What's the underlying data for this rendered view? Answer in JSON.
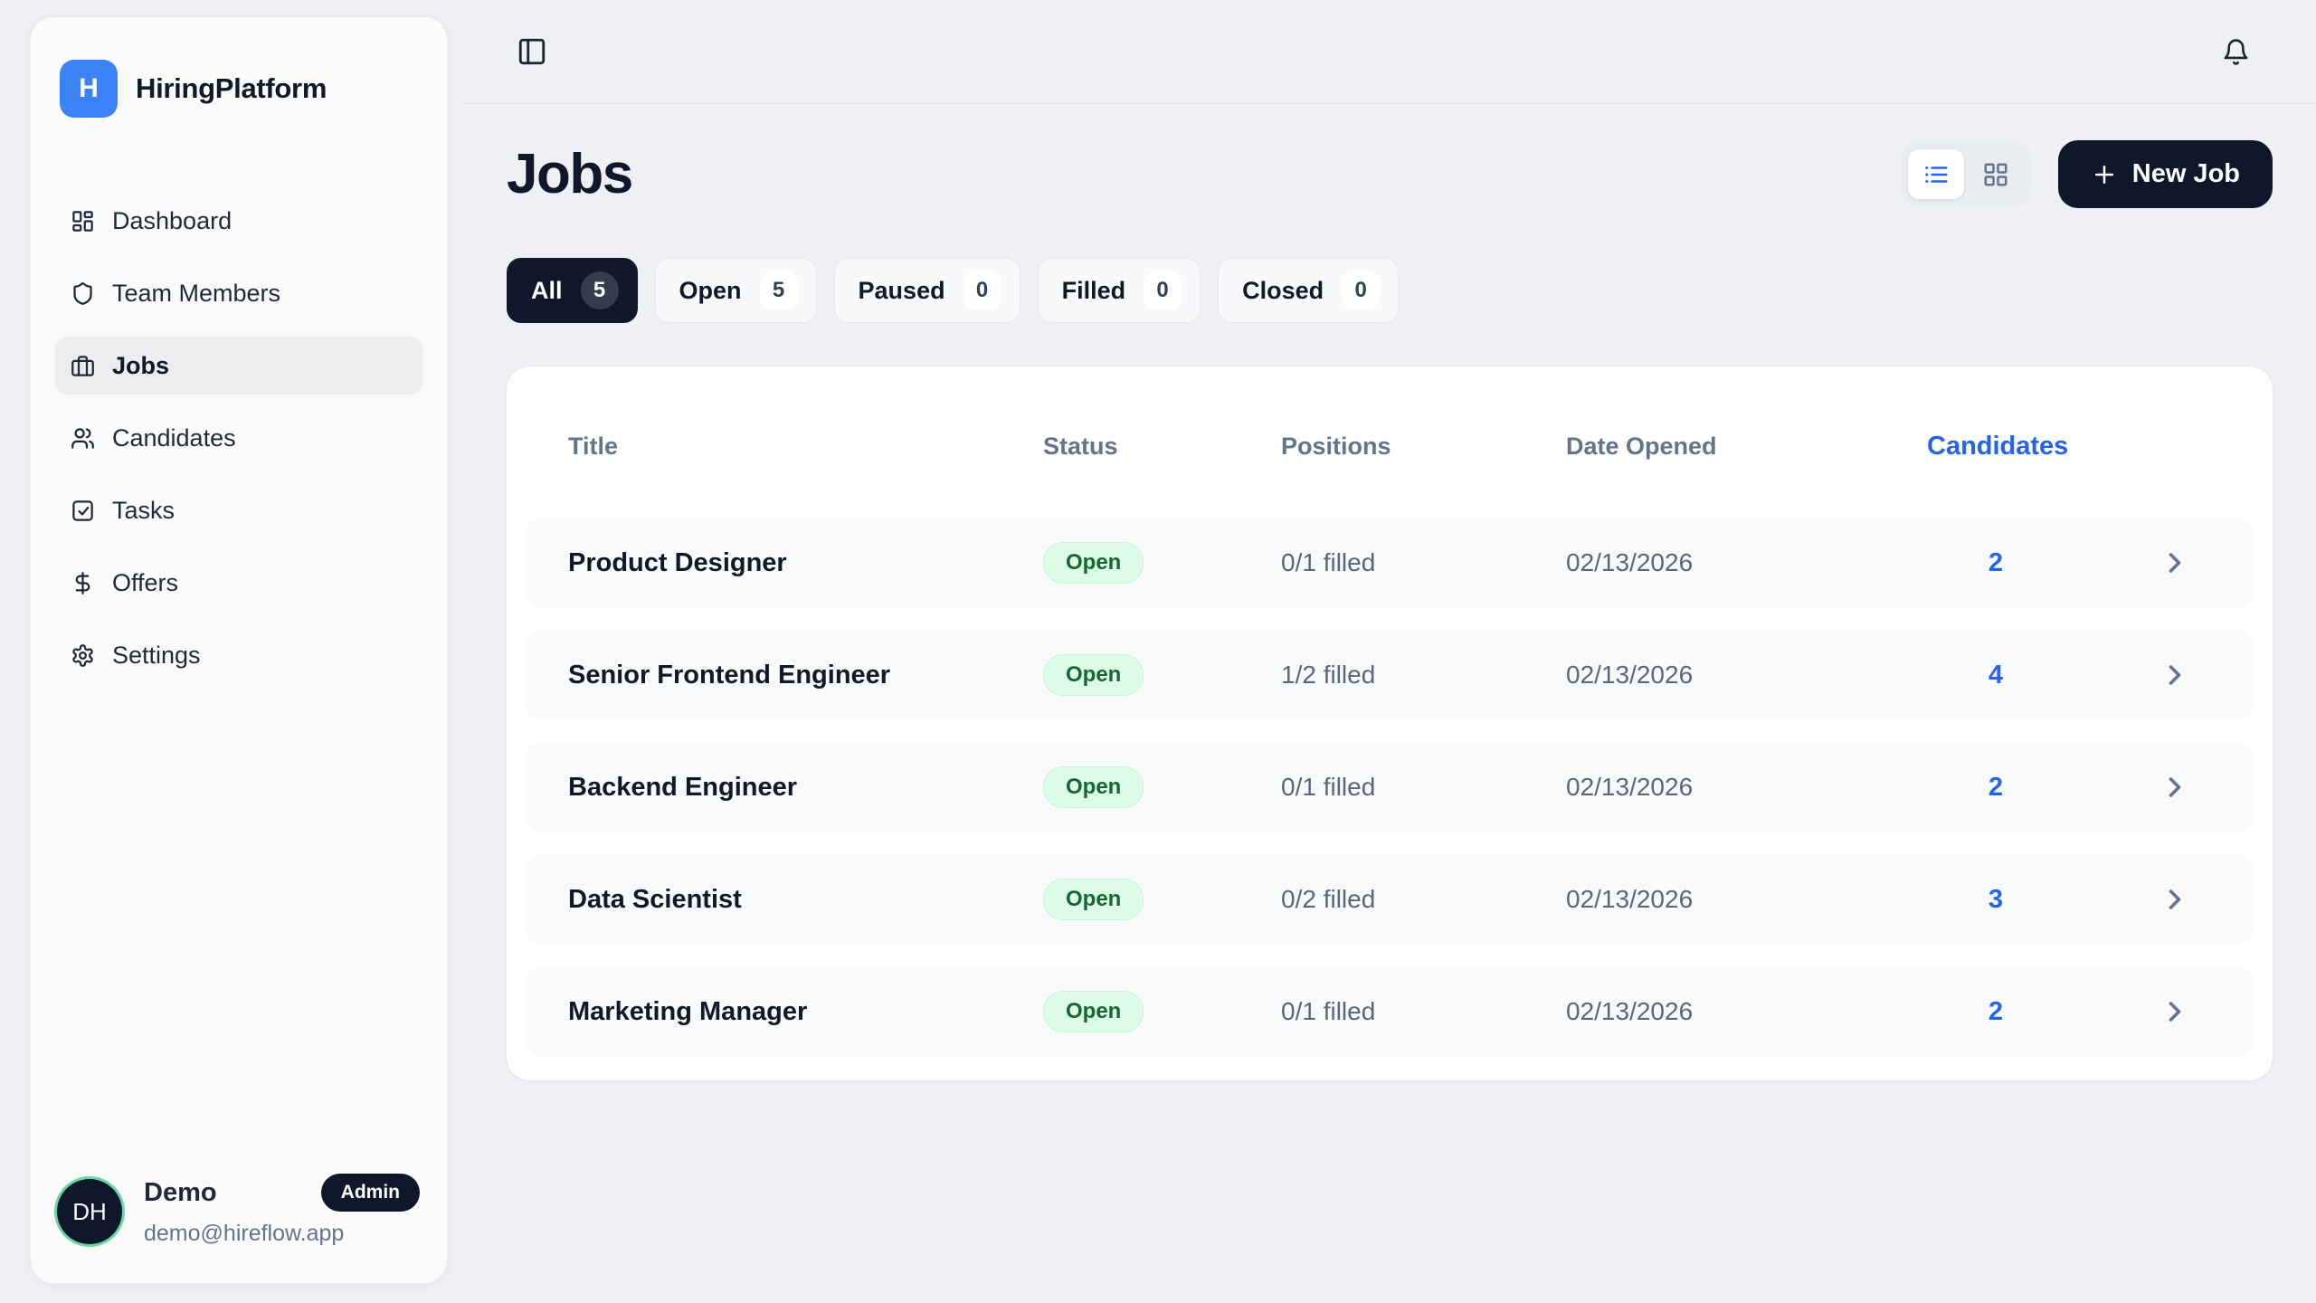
{
  "app": {
    "name": "HiringPlatform",
    "logo_letter": "H",
    "logo_icon": "logo-mark-icon"
  },
  "colors": {
    "accent_blue": "#2563eb",
    "logo_blue": "#3b82f6",
    "navy": "#0f172a",
    "status_open_bg": "#dcfce7",
    "status_open_text": "#166534",
    "avatar_ring_green": "#66d9a1",
    "page_bg": "#eef0f3"
  },
  "sidebar": {
    "items": [
      {
        "label": "Dashboard",
        "icon": "dashboard-icon",
        "active": false
      },
      {
        "label": "Team Members",
        "icon": "shield-icon",
        "active": false
      },
      {
        "label": "Jobs",
        "icon": "briefcase-icon",
        "active": true
      },
      {
        "label": "Candidates",
        "icon": "users-icon",
        "active": false
      },
      {
        "label": "Tasks",
        "icon": "check-square-icon",
        "active": false
      },
      {
        "label": "Offers",
        "icon": "dollar-icon",
        "active": false
      },
      {
        "label": "Settings",
        "icon": "gear-icon",
        "active": false
      }
    ],
    "user": {
      "initials": "DH",
      "name": "Demo",
      "role_badge": "Admin",
      "email": "demo@hireflow.app"
    }
  },
  "topbar": {
    "sidebar_toggle_icon": "panel-left-icon",
    "notifications_icon": "bell-icon"
  },
  "page": {
    "title": "Jobs",
    "filters": [
      {
        "label": "All",
        "count": "5",
        "active": true
      },
      {
        "label": "Open",
        "count": "5",
        "active": false
      },
      {
        "label": "Paused",
        "count": "0",
        "active": false
      },
      {
        "label": "Filled",
        "count": "0",
        "active": false
      },
      {
        "label": "Closed",
        "count": "0",
        "active": false
      }
    ],
    "view_toggle": {
      "options": [
        {
          "name": "list",
          "icon": "list-view-icon",
          "active": true
        },
        {
          "name": "grid",
          "icon": "grid-view-icon",
          "active": false
        }
      ]
    },
    "new_job_label": "New Job"
  },
  "table": {
    "columns": [
      "Title",
      "Status",
      "Positions",
      "Date Opened",
      "Candidates"
    ],
    "rows": [
      {
        "title": "Product Designer",
        "status": "Open",
        "positions": "0/1 filled",
        "date_opened": "02/13/2026",
        "candidates": "2"
      },
      {
        "title": "Senior Frontend Engineer",
        "status": "Open",
        "positions": "1/2 filled",
        "date_opened": "02/13/2026",
        "candidates": "4"
      },
      {
        "title": "Backend Engineer",
        "status": "Open",
        "positions": "0/1 filled",
        "date_opened": "02/13/2026",
        "candidates": "2"
      },
      {
        "title": "Data Scientist",
        "status": "Open",
        "positions": "0/2 filled",
        "date_opened": "02/13/2026",
        "candidates": "3"
      },
      {
        "title": "Marketing Manager",
        "status": "Open",
        "positions": "0/1 filled",
        "date_opened": "02/13/2026",
        "candidates": "2"
      }
    ]
  }
}
